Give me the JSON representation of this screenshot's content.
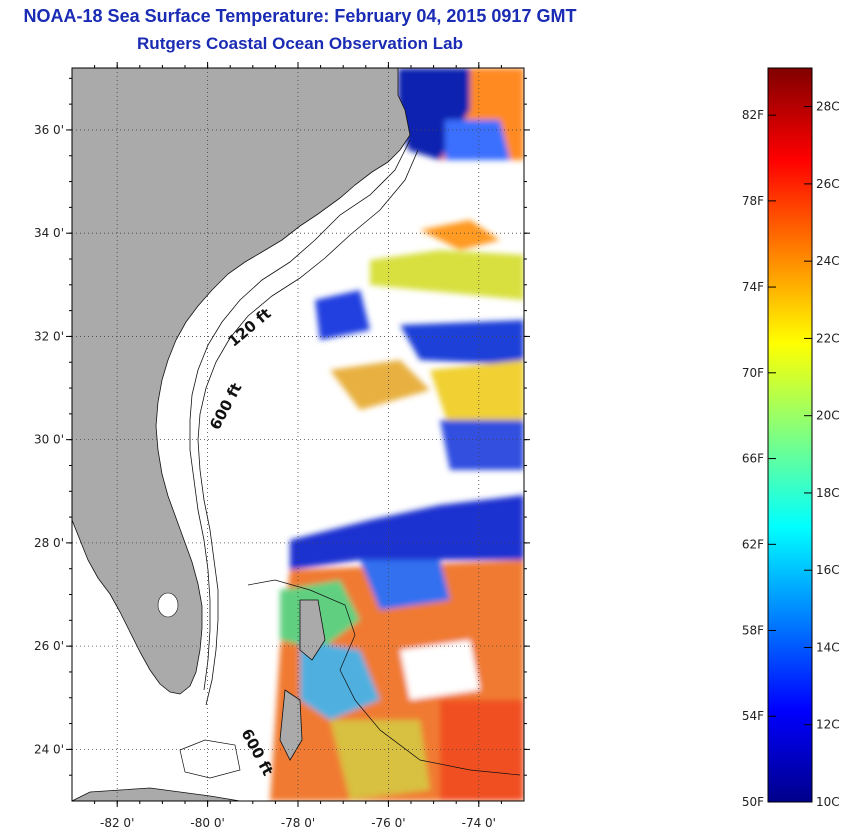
{
  "header": {
    "title": "NOAA-18 Sea Surface Temperature:  February 04, 2015 0917 GMT",
    "subtitle": "Rutgers Coastal Ocean Observation Lab"
  },
  "map": {
    "lat_range": [
      23,
      37.2
    ],
    "lon_range": [
      -83,
      -73
    ],
    "lat_ticks": [
      {
        "value": 24,
        "label": "24 0'"
      },
      {
        "value": 26,
        "label": "26 0'"
      },
      {
        "value": 28,
        "label": "28 0'"
      },
      {
        "value": 30,
        "label": "30 0'"
      },
      {
        "value": 32,
        "label": "32 0'"
      },
      {
        "value": 34,
        "label": "34 0'"
      },
      {
        "value": 36,
        "label": "36 0'"
      }
    ],
    "lon_ticks": [
      {
        "value": -82,
        "label": "-82 0'"
      },
      {
        "value": -80,
        "label": "-80 0'"
      },
      {
        "value": -78,
        "label": "-78 0'"
      },
      {
        "value": -76,
        "label": "-76 0'"
      },
      {
        "value": -74,
        "label": "-74 0'"
      }
    ],
    "contour_labels": [
      {
        "text": "120 ft",
        "lon": -79.0,
        "lat": 32.1,
        "rotate": -40
      },
      {
        "text": "600 ft",
        "lon": -79.5,
        "lat": 30.6,
        "rotate": -62
      },
      {
        "text": "600 ft",
        "lon": -79.0,
        "lat": 23.9,
        "rotate": 62
      }
    ],
    "land_color": "#aaaaaa",
    "grid": true
  },
  "colorbar": {
    "range_c": [
      10,
      29
    ],
    "range_f": [
      50,
      84
    ],
    "left_labels": [
      {
        "label": "50F",
        "value_c": 10
      },
      {
        "label": "54F",
        "value_c": 12.22
      },
      {
        "label": "58F",
        "value_c": 14.44
      },
      {
        "label": "62F",
        "value_c": 16.67
      },
      {
        "label": "66F",
        "value_c": 18.89
      },
      {
        "label": "70F",
        "value_c": 21.11
      },
      {
        "label": "74F",
        "value_c": 23.33
      },
      {
        "label": "78F",
        "value_c": 25.56
      },
      {
        "label": "82F",
        "value_c": 27.78
      }
    ],
    "right_labels": [
      {
        "label": "10C",
        "value_c": 10
      },
      {
        "label": "12C",
        "value_c": 12
      },
      {
        "label": "14C",
        "value_c": 14
      },
      {
        "label": "16C",
        "value_c": 16
      },
      {
        "label": "18C",
        "value_c": 18
      },
      {
        "label": "20C",
        "value_c": 20
      },
      {
        "label": "22C",
        "value_c": 22
      },
      {
        "label": "24C",
        "value_c": 24
      },
      {
        "label": "26C",
        "value_c": 26
      },
      {
        "label": "28C",
        "value_c": 28
      }
    ],
    "colors": [
      "#00008a",
      "#0000ff",
      "#0080ff",
      "#00ffff",
      "#80ff80",
      "#ffff00",
      "#ff8000",
      "#ff0000",
      "#800000"
    ]
  }
}
